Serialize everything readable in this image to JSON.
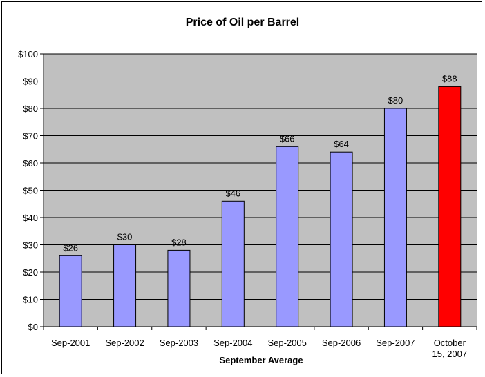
{
  "chart_data": {
    "type": "bar",
    "title": "Price of Oil per Barrel",
    "xlabel": "September Average",
    "ylabel": "",
    "ylim": [
      0,
      100
    ],
    "ytick_step": 10,
    "ytick_prefix": "$",
    "grid": "horizontal",
    "legend": "none",
    "categories": [
      "Sep-2001",
      "Sep-2002",
      "Sep-2003",
      "Sep-2004",
      "Sep-2005",
      "Sep-2006",
      "Sep-2007",
      "October 15, 2007"
    ],
    "category_lines": [
      [
        "Sep-2001"
      ],
      [
        "Sep-2002"
      ],
      [
        "Sep-2003"
      ],
      [
        "Sep-2004"
      ],
      [
        "Sep-2005"
      ],
      [
        "Sep-2006"
      ],
      [
        "Sep-2007"
      ],
      [
        "October",
        "15, 2007"
      ]
    ],
    "values": [
      26,
      30,
      28,
      46,
      66,
      64,
      80,
      88
    ],
    "data_labels": [
      "$26",
      "$30",
      "$28",
      "$46",
      "$66",
      "$64",
      "$80",
      "$88"
    ],
    "colors": {
      "bar": "#9999ff",
      "highlight_bar": "#ff0000",
      "plot_background": "#c0c0c0",
      "gridline": "#000000"
    },
    "highlight_index": 7
  }
}
